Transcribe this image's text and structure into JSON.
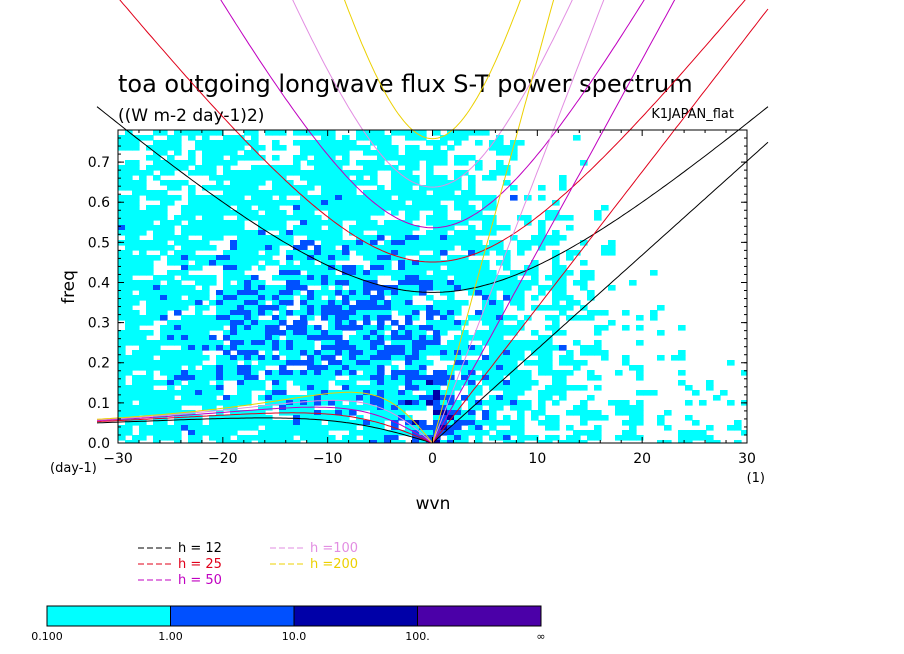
{
  "chart_data": {
    "type": "heatmap",
    "title": "toa outgoing longwave flux S-T power spectrum",
    "subtitle": "((W m-2 day-1)2)",
    "dataset_label": "K1JAPAN_flat",
    "xlabel": "wvn",
    "ylabel": "freq",
    "x_unit": "(1)",
    "y_unit": "(day-1)",
    "xlim": [
      -30,
      30
    ],
    "ylim": [
      0,
      0.78
    ],
    "xticks": [
      -30,
      -20,
      -10,
      0,
      10,
      20,
      30
    ],
    "xtick_labels": [
      "−30",
      "−20",
      "−10",
      "0",
      "10",
      "20",
      "30"
    ],
    "yticks": [
      0.0,
      0.1,
      0.2,
      0.3,
      0.4,
      0.5,
      0.6,
      0.7
    ],
    "ytick_labels": [
      "0.0",
      "0.1",
      "0.2",
      "0.3",
      "0.4",
      "0.5",
      "0.6",
      "0.7"
    ],
    "colorbar": {
      "levels": [
        "0.100",
        "1.00",
        "10.0",
        "100.",
        "∞"
      ],
      "colors": [
        "#00ffff",
        "#0050ff",
        "#0000a8",
        "#4b00a8"
      ]
    },
    "dispersion_curves": [
      {
        "name": "h = 12",
        "color": "#000000",
        "equivalent_depth": 12
      },
      {
        "name": "h = 25",
        "color": "#e0001a",
        "equivalent_depth": 25
      },
      {
        "name": "h = 50",
        "color": "#c000c0",
        "equivalent_depth": 50
      },
      {
        "name": "h =100",
        "color": "#e28ee2",
        "equivalent_depth": 100
      },
      {
        "name": "h =200",
        "color": "#ecd000",
        "equivalent_depth": 200
      }
    ]
  }
}
